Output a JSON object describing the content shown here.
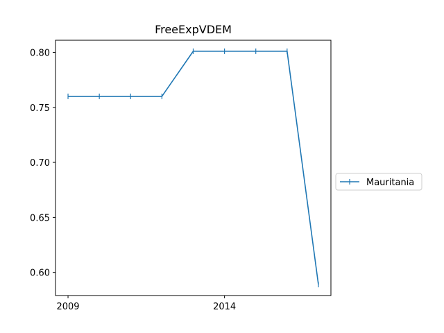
{
  "chart_data": {
    "type": "line",
    "title": "FreeExpVDEM",
    "xlabel": "",
    "ylabel": "",
    "x": [
      2009,
      2010,
      2011,
      2012,
      2013,
      2014,
      2015,
      2016,
      2017
    ],
    "series": [
      {
        "name": "Mauritania",
        "color": "#1f77b4",
        "marker": "vertical-tick",
        "values": [
          0.76,
          0.76,
          0.76,
          0.76,
          0.801,
          0.801,
          0.801,
          0.801,
          0.589
        ]
      }
    ],
    "xlim": [
      2008.6,
      2017.4
    ],
    "ylim": [
      0.579,
      0.811
    ],
    "x_ticks": [
      2009,
      2014
    ],
    "x_tick_labels": [
      "2009",
      "2014"
    ],
    "y_ticks": [
      0.6,
      0.65,
      0.7,
      0.75,
      0.8
    ],
    "y_tick_labels": [
      "0.60",
      "0.65",
      "0.70",
      "0.75",
      "0.80"
    ],
    "grid": false,
    "legend": "outside-right"
  }
}
